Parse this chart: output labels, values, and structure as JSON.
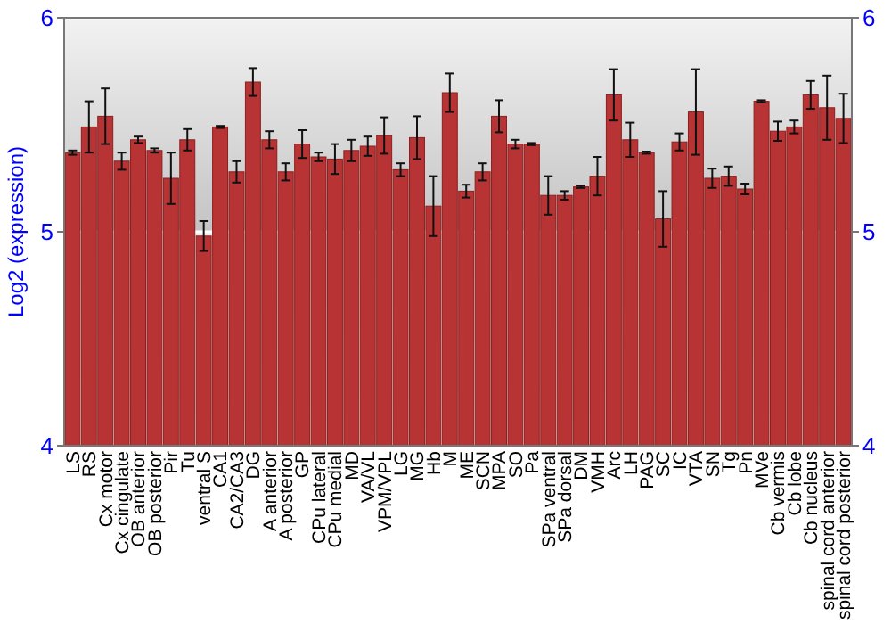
{
  "chart_data": {
    "type": "bar",
    "ylabel": "Log2 (expression)",
    "categories": [
      "LS",
      "RS",
      "Cx motor",
      "Cx cingulate",
      "OB anterior",
      "OB posterior",
      "Pir",
      "Tu",
      "ventral S",
      "CA1",
      "CA2/CA3",
      "DG",
      "A anterior",
      "A posterior",
      "GP",
      "CPu lateral",
      "CPu medial",
      "MD",
      "VA/VL",
      "VPM/VPL",
      "LG",
      "MG",
      "Hb",
      "M",
      "ME",
      "SCN",
      "MPA",
      "SO",
      "Pa",
      "SPa ventral",
      "SPa dorsal",
      "DM",
      "VMH",
      "Arc",
      "LH",
      "PAG",
      "SC",
      "IC",
      "VTA",
      "SN",
      "Tg",
      "Pn",
      "MVe",
      "Cb vermis",
      "Cb lobe",
      "Cb nucleus",
      "spinal cord anterior",
      "spinal cord posterior"
    ],
    "values": [
      5.37,
      5.49,
      5.54,
      5.33,
      5.43,
      5.38,
      5.25,
      5.43,
      4.98,
      5.49,
      5.28,
      5.7,
      5.43,
      5.28,
      5.41,
      5.35,
      5.34,
      5.38,
      5.4,
      5.45,
      5.29,
      5.44,
      5.12,
      5.65,
      5.19,
      5.28,
      5.54,
      5.41,
      5.41,
      5.17,
      5.17,
      5.21,
      5.26,
      5.64,
      5.43,
      5.37,
      5.06,
      5.42,
      5.56,
      5.25,
      5.26,
      5.2,
      5.61,
      5.47,
      5.49,
      5.64,
      5.58,
      5.53
    ],
    "errors": [
      0.01,
      0.12,
      0.13,
      0.04,
      0.015,
      0.01,
      0.12,
      0.05,
      0.07,
      0.005,
      0.05,
      0.065,
      0.04,
      0.04,
      0.065,
      0.02,
      0.07,
      0.05,
      0.045,
      0.085,
      0.03,
      0.1,
      0.14,
      0.09,
      0.03,
      0.04,
      0.075,
      0.02,
      0.005,
      0.09,
      0.02,
      0.005,
      0.09,
      0.12,
      0.08,
      0.005,
      0.13,
      0.04,
      0.2,
      0.045,
      0.045,
      0.025,
      0.005,
      0.045,
      0.03,
      0.065,
      0.15,
      0.115
    ],
    "color": "#b83434",
    "ylim": [
      4,
      6
    ],
    "yticks": [
      4,
      5,
      6
    ],
    "y2lim": [
      4,
      6
    ],
    "y2ticks": [
      4,
      5,
      6
    ],
    "grid": "y"
  }
}
